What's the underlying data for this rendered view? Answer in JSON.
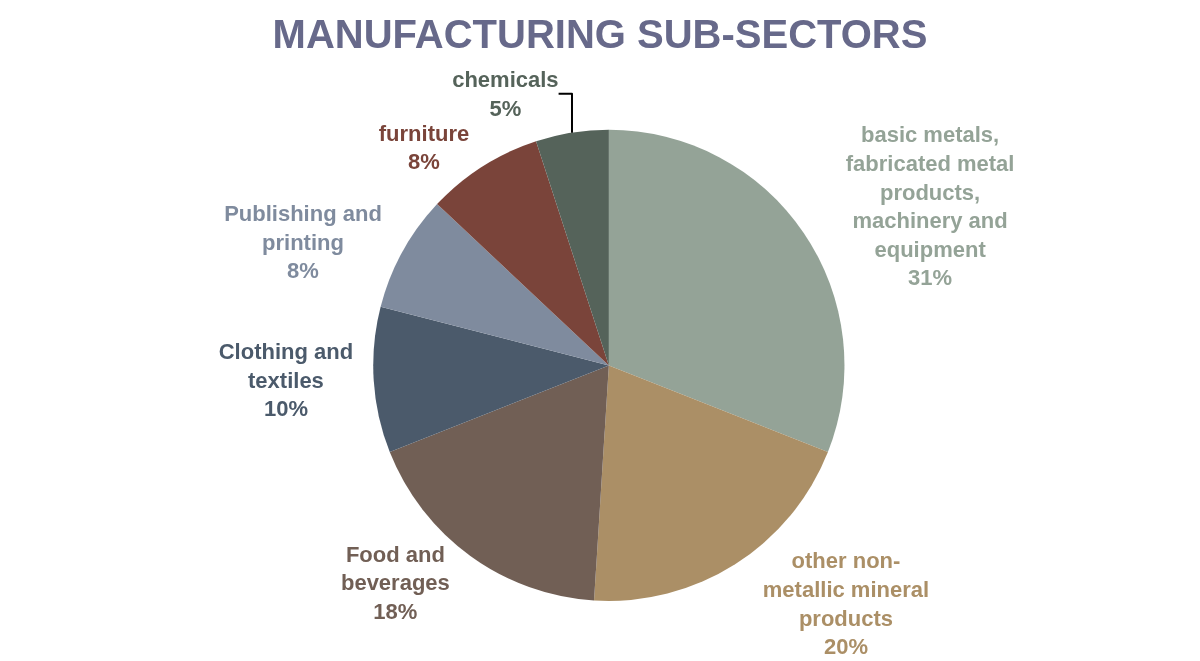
{
  "chart_data": {
    "type": "pie",
    "title": "MANUFACTURING SUB-SECTORS",
    "categories": [
      "basic metals, fabricated metal products, machinery and equipment",
      "other non-metallic mineral products",
      "Food and beverages",
      "Clothing and textiles",
      "Publishing and printing",
      "furniture",
      "chemicals"
    ],
    "values": [
      31,
      20,
      18,
      10,
      8,
      8,
      5
    ],
    "value_labels": [
      "31%",
      "20%",
      "18%",
      "10%",
      "8%",
      "8%",
      "5%"
    ],
    "colors": [
      "#94a397",
      "#ab8f66",
      "#715f55",
      "#4b5a6b",
      "#7f8b9e",
      "#7a443a",
      "#55635a"
    ],
    "legend": false
  }
}
